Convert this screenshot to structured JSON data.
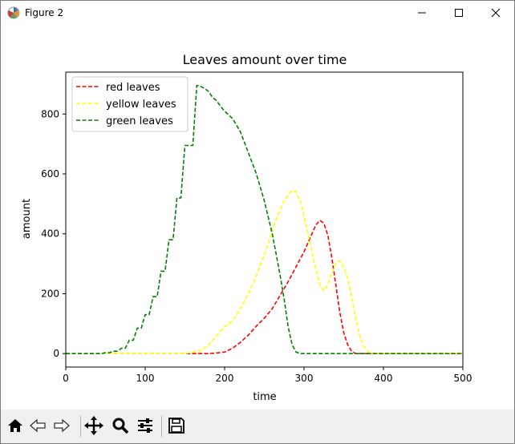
{
  "window": {
    "title": "Figure 2",
    "controls": [
      "minimize",
      "maximize",
      "close"
    ]
  },
  "chart_data": {
    "type": "line",
    "title": "Leaves amount over time",
    "xlabel": "time",
    "ylabel": "amount",
    "xlim": [
      0,
      500
    ],
    "ylim": [
      -45,
      940
    ],
    "xticks": [
      0,
      100,
      200,
      300,
      400,
      500
    ],
    "yticks": [
      0,
      200,
      400,
      600,
      800
    ],
    "grid": false,
    "legend_position": "upper-left",
    "series": [
      {
        "name": "red leaves",
        "color": "#ff0000",
        "style": "dashed",
        "x": [
          0,
          180,
          190,
          200,
          210,
          220,
          230,
          240,
          250,
          260,
          270,
          280,
          290,
          300,
          310,
          315,
          320,
          325,
          330,
          335,
          340,
          345,
          350,
          355,
          360,
          365,
          370,
          500
        ],
        "y": [
          0,
          0,
          2,
          5,
          18,
          38,
          62,
          92,
          118,
          150,
          195,
          240,
          290,
          340,
          400,
          430,
          445,
          435,
          395,
          320,
          230,
          140,
          70,
          30,
          8,
          0,
          0,
          0
        ]
      },
      {
        "name": "yellow leaves",
        "color": "#ffff00",
        "style": "dashed",
        "x": [
          0,
          150,
          160,
          170,
          180,
          190,
          200,
          210,
          220,
          230,
          240,
          250,
          255,
          260,
          265,
          270,
          275,
          280,
          285,
          290,
          295,
          300,
          305,
          310,
          315,
          320,
          325,
          330,
          335,
          340,
          345,
          350,
          355,
          360,
          365,
          370,
          375,
          380,
          385,
          390,
          500
        ],
        "y": [
          0,
          0,
          5,
          10,
          30,
          60,
          90,
          110,
          150,
          200,
          260,
          330,
          370,
          410,
          450,
          480,
          510,
          530,
          545,
          540,
          510,
          460,
          400,
          340,
          280,
          230,
          210,
          230,
          270,
          300,
          310,
          290,
          250,
          190,
          120,
          60,
          25,
          8,
          0,
          0,
          0
        ]
      },
      {
        "name": "green leaves",
        "color": "#008000",
        "style": "dashed",
        "x": [
          0,
          45,
          50,
          55,
          60,
          65,
          70,
          75,
          80,
          85,
          90,
          95,
          100,
          105,
          110,
          115,
          120,
          125,
          130,
          135,
          140,
          145,
          150,
          155,
          160,
          165,
          168,
          175,
          180,
          185,
          190,
          195,
          200,
          210,
          220,
          230,
          240,
          250,
          260,
          265,
          270,
          275,
          280,
          285,
          290,
          295,
          300,
          500
        ],
        "y": [
          0,
          0,
          3,
          3,
          8,
          8,
          18,
          18,
          45,
          45,
          85,
          85,
          130,
          130,
          190,
          190,
          275,
          275,
          380,
          380,
          520,
          520,
          695,
          695,
          695,
          895,
          895,
          885,
          875,
          855,
          845,
          825,
          810,
          785,
          740,
          670,
          600,
          510,
          400,
          330,
          260,
          180,
          90,
          30,
          5,
          0,
          0,
          0
        ]
      }
    ]
  }
}
